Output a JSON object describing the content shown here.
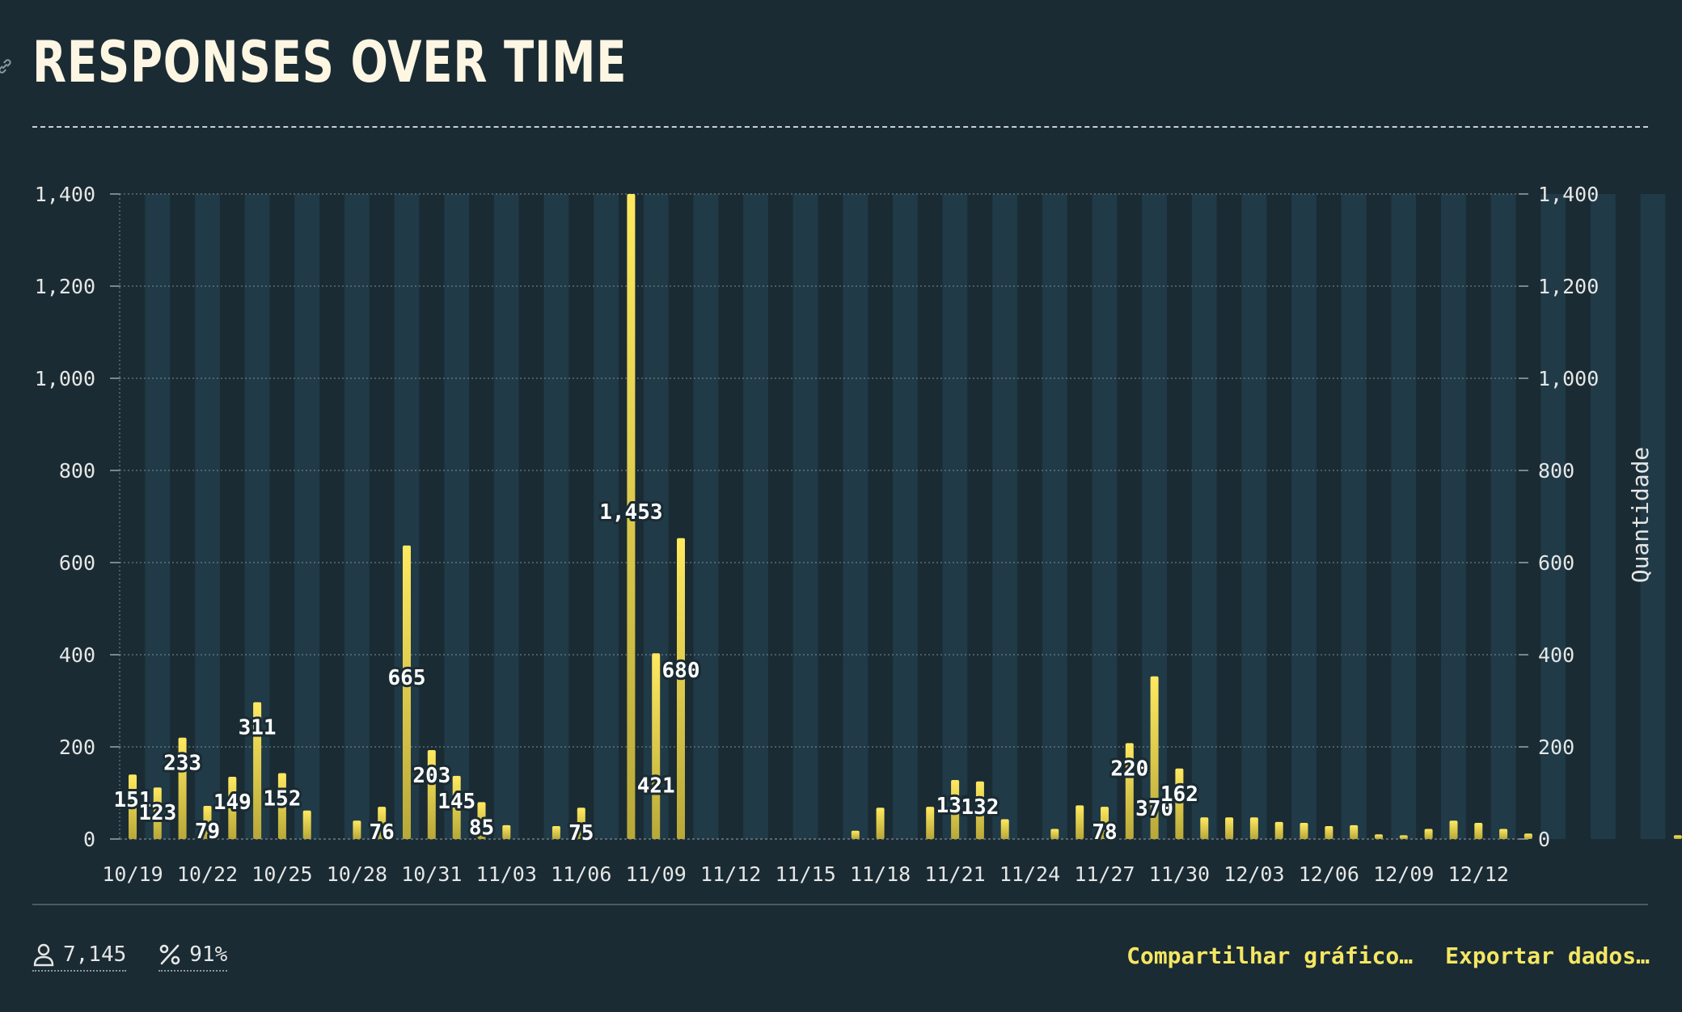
{
  "header": {
    "title": "RESPONSES OVER TIME"
  },
  "stats": {
    "respondents": "7,145",
    "completion": "91%"
  },
  "actions": {
    "share": "Compartilhar gráfico…",
    "export": "Exportar dados…"
  },
  "colors": {
    "background": "#1a2b33",
    "band": "#203a47",
    "bar_top": "#ffe960",
    "bar_bottom": "#b8a838",
    "accent": "#f5e663"
  },
  "icons": {
    "link": "link-icon",
    "respondents": "person-icon",
    "completion": "percent-icon"
  },
  "chart_data": {
    "type": "bar",
    "y_axis_label": "Quantidade",
    "ylim": [
      0,
      1400
    ],
    "y_ticks": [
      "0",
      "200",
      "400",
      "600",
      "800",
      "1,000",
      "1,200",
      "1,400"
    ],
    "y_axis_right": true,
    "grid": true,
    "x_tick_labels": [
      "10/19",
      "10/22",
      "10/25",
      "10/28",
      "10/31",
      "11/03",
      "11/06",
      "11/09",
      "11/12",
      "11/15",
      "11/18",
      "11/21",
      "11/24",
      "11/27",
      "11/30",
      "12/03",
      "12/06",
      "12/09",
      "12/12"
    ],
    "values": [
      140,
      112,
      220,
      72,
      135,
      297,
      143,
      62,
      0,
      40,
      70,
      637,
      193,
      137,
      80,
      30,
      0,
      28,
      68,
      0,
      1400,
      403,
      653,
      0,
      0,
      0,
      0,
      0,
      0,
      18,
      68,
      0,
      70,
      128,
      125,
      43,
      0,
      22,
      73,
      70,
      208,
      353,
      153,
      47,
      47,
      47,
      37,
      35,
      28,
      30,
      10,
      8,
      22,
      40,
      35,
      22,
      12,
      0,
      0,
      0,
      0,
      0,
      8,
      15,
      0,
      0,
      10
    ],
    "data_labels": [
      {
        "day": 0,
        "text": "151"
      },
      {
        "day": 1,
        "text": "123"
      },
      {
        "day": 2,
        "text": "233"
      },
      {
        "day": 3,
        "text": "79"
      },
      {
        "day": 4,
        "text": "149"
      },
      {
        "day": 5,
        "text": "311"
      },
      {
        "day": 6,
        "text": "152"
      },
      {
        "day": 10,
        "text": "76"
      },
      {
        "day": 11,
        "text": "665"
      },
      {
        "day": 12,
        "text": "203"
      },
      {
        "day": 13,
        "text": "145"
      },
      {
        "day": 14,
        "text": "85"
      },
      {
        "day": 18,
        "text": "75"
      },
      {
        "day": 20,
        "text": "1,453"
      },
      {
        "day": 21,
        "text": "421"
      },
      {
        "day": 22,
        "text": "680"
      },
      {
        "day": 33,
        "text": "131"
      },
      {
        "day": 34,
        "text": "132"
      },
      {
        "day": 39,
        "text": "78"
      },
      {
        "day": 40,
        "text": "220"
      },
      {
        "day": 41,
        "text": "370"
      },
      {
        "day": 42,
        "text": "162"
      }
    ]
  }
}
